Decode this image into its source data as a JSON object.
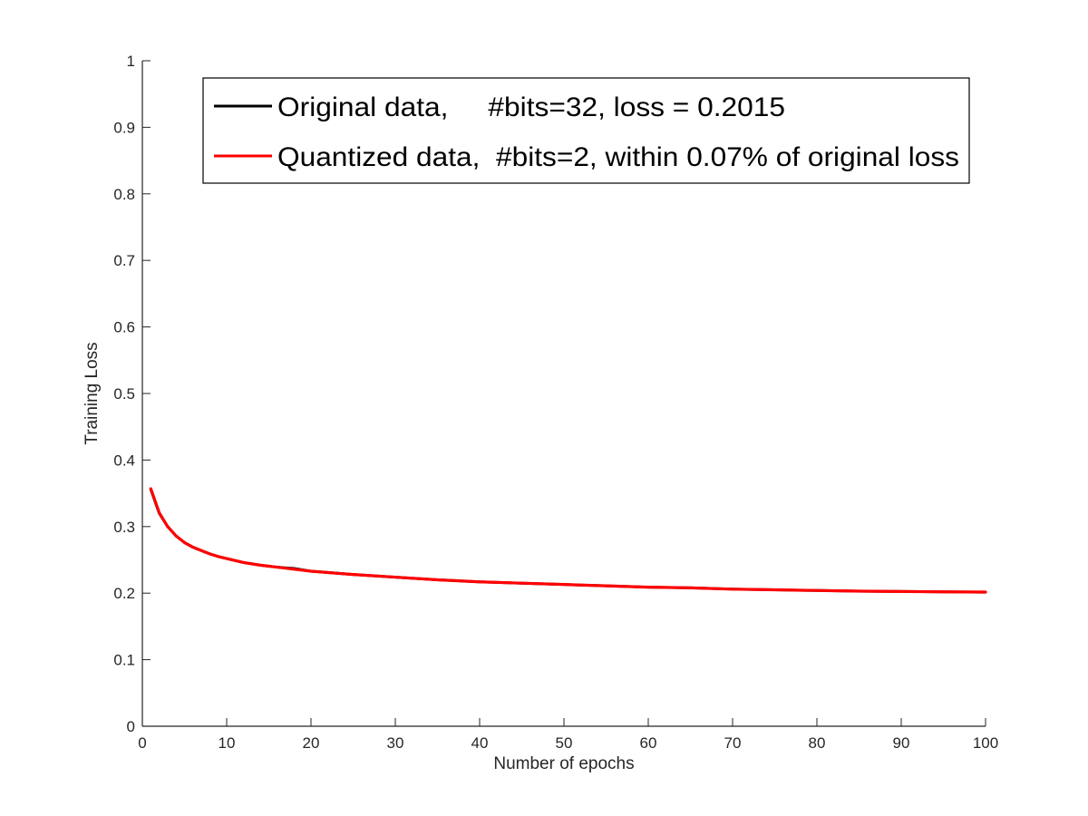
{
  "chart_data": {
    "type": "line",
    "title": "",
    "xlabel": "Number of epochs",
    "ylabel": "Training Loss",
    "xlim": [
      0,
      100
    ],
    "ylim": [
      0,
      1
    ],
    "x_ticks": [
      0,
      10,
      20,
      30,
      40,
      50,
      60,
      70,
      80,
      90,
      100
    ],
    "x_tick_labels": [
      "0",
      "10",
      "20",
      "30",
      "40",
      "50",
      "60",
      "70",
      "80",
      "90",
      "100"
    ],
    "y_ticks": [
      0,
      0.1,
      0.2,
      0.3,
      0.4,
      0.5,
      0.6,
      0.7,
      0.8,
      0.9,
      1
    ],
    "y_tick_labels": [
      "0",
      "0.1",
      "0.2",
      "0.3",
      "0.4",
      "0.5",
      "0.6",
      "0.7",
      "0.8",
      "0.9",
      "1"
    ],
    "grid": false,
    "legend_position": "top",
    "x": [
      1,
      2,
      3,
      4,
      5,
      6,
      7,
      8,
      9,
      10,
      12,
      14,
      16,
      18,
      20,
      25,
      30,
      35,
      40,
      45,
      50,
      55,
      60,
      65,
      70,
      75,
      80,
      85,
      90,
      95,
      100
    ],
    "series": [
      {
        "name": "Original data,     #bits=32, loss = 0.2015",
        "color": "#000000",
        "values": [
          0.356,
          0.32,
          0.3,
          0.286,
          0.276,
          0.269,
          0.264,
          0.259,
          0.255,
          0.252,
          0.246,
          0.242,
          0.239,
          0.237,
          0.233,
          0.228,
          0.224,
          0.22,
          0.217,
          0.215,
          0.213,
          0.211,
          0.209,
          0.208,
          0.206,
          0.205,
          0.204,
          0.203,
          0.2025,
          0.202,
          0.2015
        ]
      },
      {
        "name": "Quantized data,  #bits=2, within 0.07% of original loss",
        "color": "#ff0000",
        "values": [
          0.357,
          0.321,
          0.3,
          0.286,
          0.276,
          0.269,
          0.264,
          0.259,
          0.255,
          0.252,
          0.246,
          0.242,
          0.239,
          0.236,
          0.233,
          0.228,
          0.224,
          0.22,
          0.217,
          0.215,
          0.213,
          0.211,
          0.209,
          0.208,
          0.206,
          0.205,
          0.204,
          0.203,
          0.2025,
          0.202,
          0.2016
        ]
      }
    ]
  }
}
